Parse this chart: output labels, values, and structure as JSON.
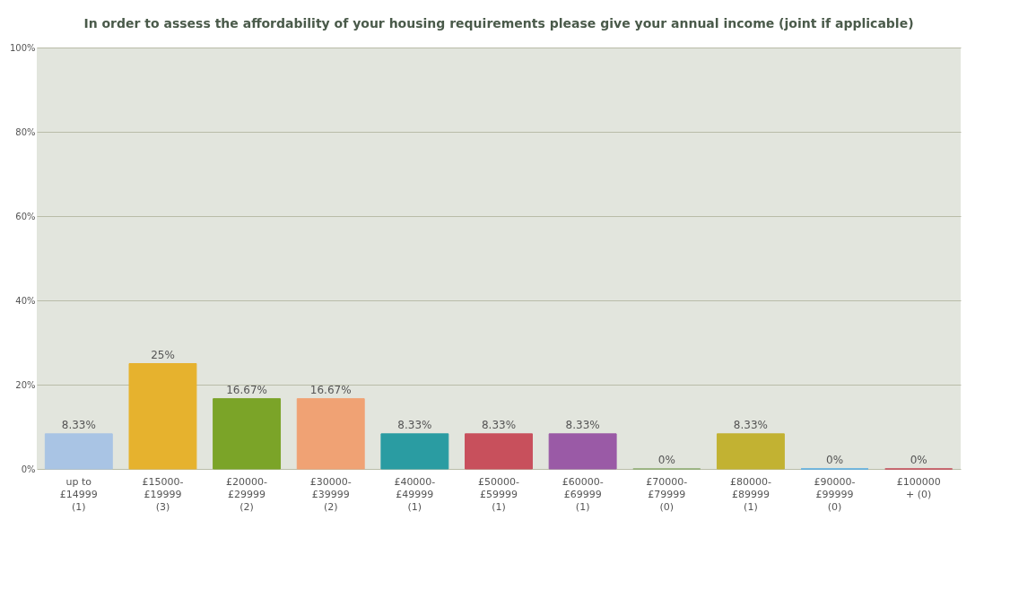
{
  "chart_data": {
    "type": "bar",
    "title": "In order to assess the affordability of your housing requirements please give your annual income (joint if applicable)",
    "categories": [
      "up to\n£14999\n(1)",
      "£15000-\n£19999\n(3)",
      "£20000-\n£29999\n(2)",
      "£30000-\n£39999\n(2)",
      "£40000-\n£49999\n(1)",
      "£50000-\n£59999\n(1)",
      "£60000-\n£69999\n(1)",
      "£70000-\n£79999\n(0)",
      "£80000-\n£89999\n(1)",
      "£90000-\n£99999\n(0)",
      "£100000\n+ (0)"
    ],
    "values": [
      8.33,
      25,
      16.67,
      16.67,
      8.33,
      8.33,
      8.33,
      0,
      8.33,
      0,
      0
    ],
    "value_labels": [
      "8.33%",
      "25%",
      "16.67%",
      "16.67%",
      "8.33%",
      "8.33%",
      "8.33%",
      "0%",
      "8.33%",
      "0%",
      "0%"
    ],
    "colors": [
      "#a9c4e4",
      "#e6b22e",
      "#7ba428",
      "#f0a274",
      "#2a9ca2",
      "#c8505c",
      "#9a5aa6",
      "#8aaa6e",
      "#c2b232",
      "#52aae0",
      "#c24452"
    ],
    "ylim": [
      0,
      100
    ],
    "yticks": [
      {
        "value": 0,
        "label": "0%"
      },
      {
        "value": 20,
        "label": "20%"
      },
      {
        "value": 40,
        "label": "40%"
      },
      {
        "value": 60,
        "label": "60%"
      },
      {
        "value": 80,
        "label": "80%"
      },
      {
        "value": 100,
        "label": "100%"
      }
    ],
    "grid": "y"
  }
}
